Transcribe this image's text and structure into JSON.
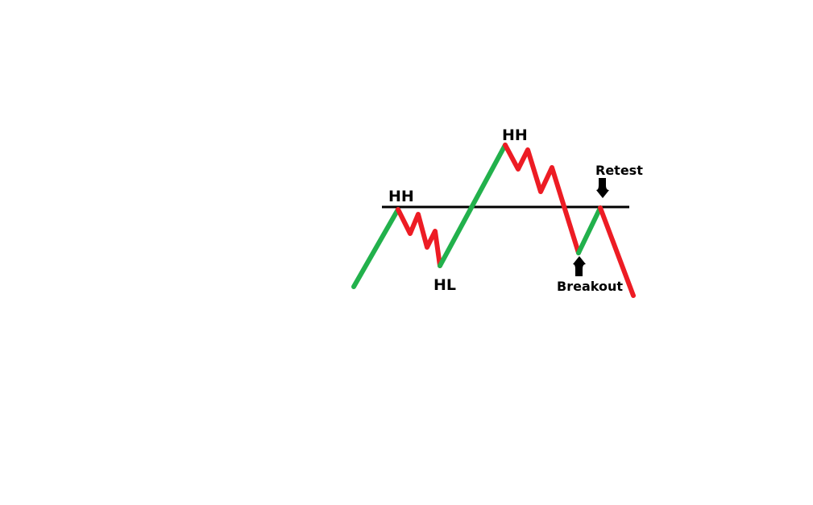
{
  "colors": {
    "background": "#ffffff",
    "bullish": "#22b14c",
    "bearish": "#ed1c24",
    "level": "#000000",
    "arrow": "#000000"
  },
  "labels": {
    "hh_first": "HH",
    "hl": "HL",
    "hh_second": "HH",
    "retest": "Retest",
    "breakout": "Breakout"
  },
  "icons": {
    "breakout_marker": "arrow-up-icon",
    "retest_marker": "arrow-down-icon"
  }
}
